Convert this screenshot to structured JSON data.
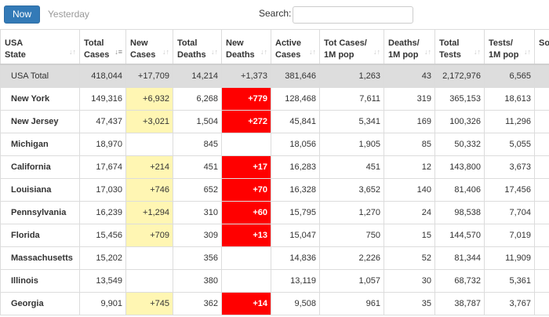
{
  "toolbar": {
    "now_label": "Now",
    "yesterday_label": "Yesterday",
    "search_label": "Search:",
    "search_value": ""
  },
  "colors": {
    "new_cases_highlight": "#fff6b3",
    "new_deaths_highlight": "#ff0000",
    "total_row_bg": "#dddddd",
    "primary_button": "#337ab7"
  },
  "table": {
    "columns": [
      {
        "line1": "USA",
        "line2": "State",
        "sort": "unsorted"
      },
      {
        "line1": "Total",
        "line2": "Cases",
        "sort": "descending"
      },
      {
        "line1": "New",
        "line2": "Cases",
        "sort": "unsorted"
      },
      {
        "line1": "Total",
        "line2": "Deaths",
        "sort": "unsorted"
      },
      {
        "line1": "New",
        "line2": "Deaths",
        "sort": "unsorted"
      },
      {
        "line1": "Active",
        "line2": "Cases",
        "sort": "unsorted"
      },
      {
        "line1": "Tot Cases/",
        "line2": "1M pop",
        "sort": "unsorted"
      },
      {
        "line1": "Deaths/",
        "line2": "1M pop",
        "sort": "unsorted"
      },
      {
        "line1": "Total",
        "line2": "Tests",
        "sort": "unsorted"
      },
      {
        "line1": "Tests/",
        "line2": "1M pop",
        "sort": "unsorted"
      },
      {
        "line1": "So",
        "line2": "",
        "sort": "none"
      }
    ],
    "total_row": [
      "USA Total",
      "418,044",
      "+17,709",
      "14,214",
      "+1,373",
      "381,646",
      "1,263",
      "43",
      "2,172,976",
      "6,565",
      ""
    ],
    "rows": [
      [
        "New York",
        "149,316",
        "+6,932",
        "6,268",
        "+779",
        "128,468",
        "7,611",
        "319",
        "365,153",
        "18,613",
        ""
      ],
      [
        "New Jersey",
        "47,437",
        "+3,021",
        "1,504",
        "+272",
        "45,841",
        "5,341",
        "169",
        "100,326",
        "11,296",
        ""
      ],
      [
        "Michigan",
        "18,970",
        "",
        "845",
        "",
        "18,056",
        "1,905",
        "85",
        "50,332",
        "5,055",
        ""
      ],
      [
        "California",
        "17,674",
        "+214",
        "451",
        "+17",
        "16,283",
        "451",
        "12",
        "143,800",
        "3,673",
        ""
      ],
      [
        "Louisiana",
        "17,030",
        "+746",
        "652",
        "+70",
        "16,328",
        "3,652",
        "140",
        "81,406",
        "17,456",
        ""
      ],
      [
        "Pennsylvania",
        "16,239",
        "+1,294",
        "310",
        "+60",
        "15,795",
        "1,270",
        "24",
        "98,538",
        "7,704",
        ""
      ],
      [
        "Florida",
        "15,456",
        "+709",
        "309",
        "+13",
        "15,047",
        "750",
        "15",
        "144,570",
        "7,019",
        ""
      ],
      [
        "Massachusetts",
        "15,202",
        "",
        "356",
        "",
        "14,836",
        "2,226",
        "52",
        "81,344",
        "11,909",
        ""
      ],
      [
        "Illinois",
        "13,549",
        "",
        "380",
        "",
        "13,119",
        "1,057",
        "30",
        "68,732",
        "5,361",
        ""
      ],
      [
        "Georgia",
        "9,901",
        "+745",
        "362",
        "+14",
        "9,508",
        "961",
        "35",
        "38,787",
        "3,767",
        ""
      ]
    ]
  }
}
